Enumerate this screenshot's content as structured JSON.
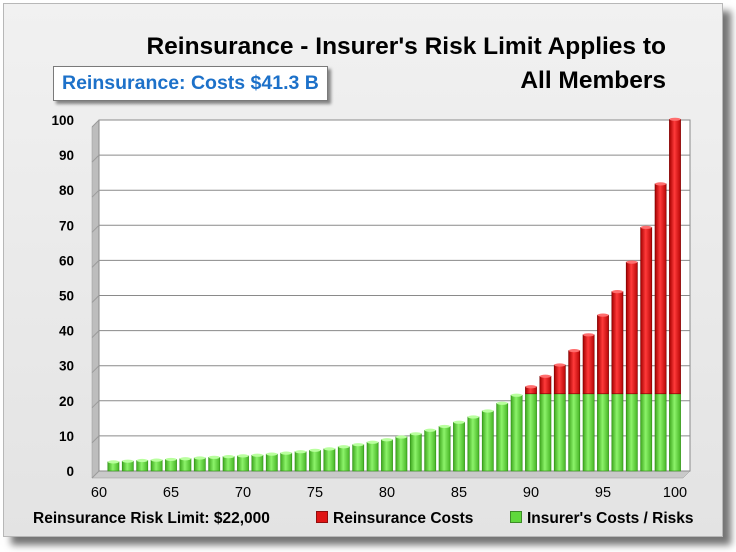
{
  "title_line1": "Reinsurance - Insurer's Risk Limit Applies to",
  "title_line2": "All Members",
  "badge_text": "Reinsurance: Costs $41.3 B",
  "limit_label": "Reinsurance Risk Limit: $22,000",
  "colors": {
    "reinsurance": "#e01515",
    "insurer": "#5fd83b",
    "badge_text": "#1d71c9"
  },
  "chart_data": {
    "type": "bar",
    "stacked": true,
    "title": "Reinsurance - Insurer's Risk Limit Applies to All Members",
    "xlabel": "",
    "ylabel": "",
    "ylim": [
      0,
      100
    ],
    "yticks": [
      0,
      10,
      20,
      30,
      40,
      50,
      60,
      70,
      80,
      90,
      100
    ],
    "xticks": [
      60,
      65,
      70,
      75,
      80,
      85,
      90,
      95,
      100
    ],
    "grid": true,
    "legend_position": "bottom",
    "categories": [
      61,
      62,
      63,
      64,
      65,
      66,
      67,
      68,
      69,
      70,
      71,
      72,
      73,
      74,
      75,
      76,
      77,
      78,
      79,
      80,
      81,
      82,
      83,
      84,
      85,
      86,
      87,
      88,
      89,
      90,
      91,
      92,
      93,
      94,
      95,
      96,
      97,
      98,
      99,
      100
    ],
    "series": [
      {
        "name": "Insurer's Costs / Risks",
        "color": "#5fd83b",
        "values": [
          2.6,
          2.8,
          3.0,
          3.1,
          3.3,
          3.5,
          3.7,
          3.9,
          4.1,
          4.3,
          4.5,
          4.8,
          5.1,
          5.5,
          5.9,
          6.3,
          6.9,
          7.5,
          8.2,
          8.9,
          9.7,
          10.6,
          11.6,
          12.7,
          13.9,
          15.4,
          17.1,
          19.3,
          21.6,
          22,
          22,
          22,
          22,
          22,
          22,
          22,
          22,
          22,
          22,
          22
        ]
      },
      {
        "name": "Reinsurance Costs",
        "color": "#e01515",
        "values": [
          0,
          0,
          0,
          0,
          0,
          0,
          0,
          0,
          0,
          0,
          0,
          0,
          0,
          0,
          0,
          0,
          0,
          0,
          0,
          0,
          0,
          0,
          0,
          0,
          0,
          0,
          0,
          0,
          0,
          2.0,
          5.0,
          8.2,
          12.3,
          16.8,
          22.4,
          29.1,
          37.5,
          47.4,
          59.8,
          78.2
        ]
      }
    ]
  }
}
